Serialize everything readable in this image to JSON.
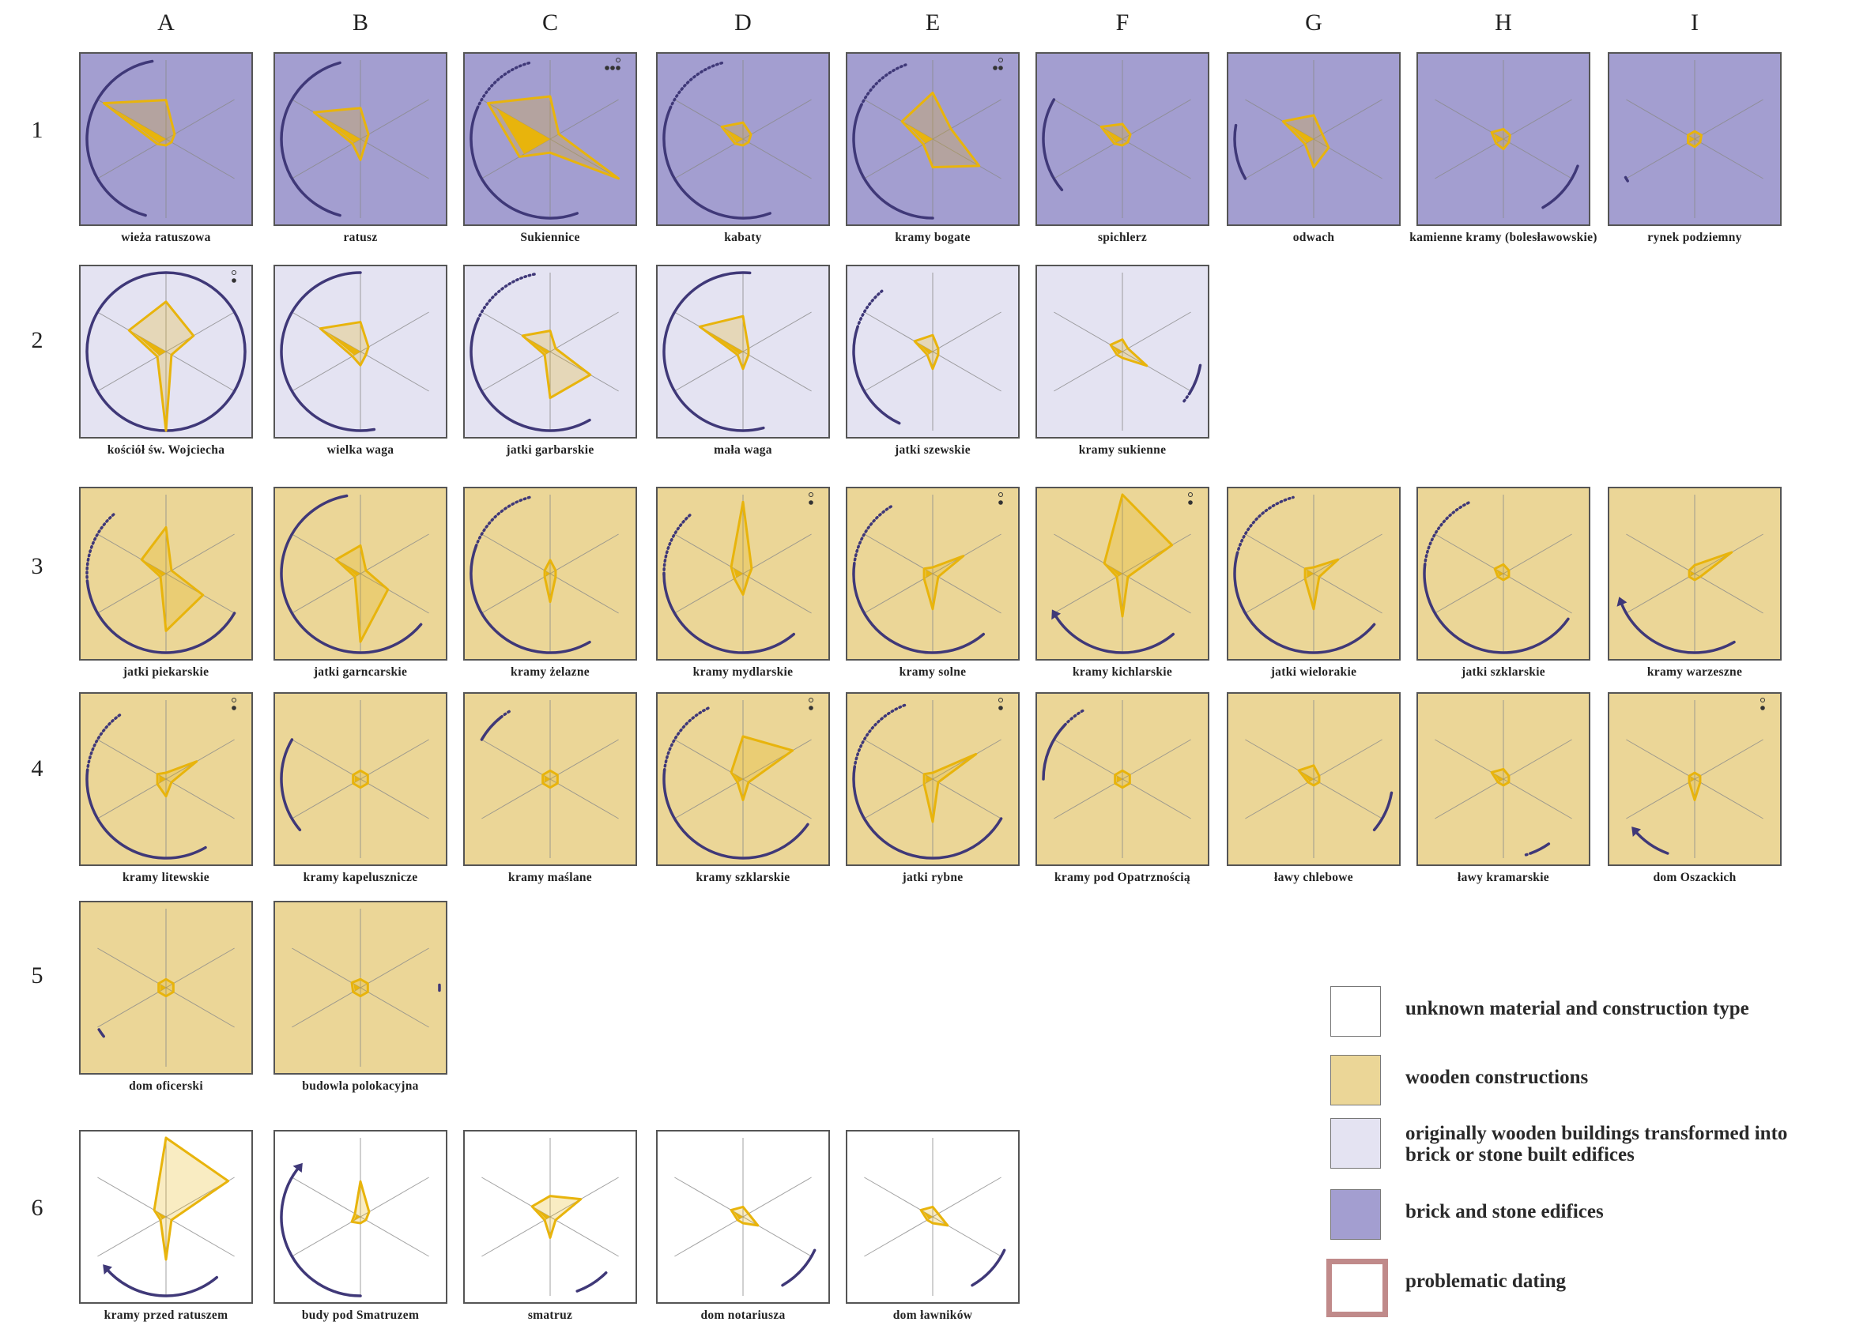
{
  "colors": {
    "unknown": "#ffffff",
    "wooden": "#ebd697",
    "transformed": "#e4e3f2",
    "brick": "#a39ed0",
    "frame": "#555555",
    "arc": "#3f3878",
    "glyph": "#e8b40c",
    "problematic": "#c08a8a"
  },
  "columns": [
    "A",
    "B",
    "C",
    "D",
    "E",
    "F",
    "G",
    "H",
    "I"
  ],
  "rows": [
    "1",
    "2",
    "3",
    "4",
    "5",
    "6"
  ],
  "cells": [
    {
      "row": 0,
      "col": 0,
      "label": "wieża ratuszowa",
      "material": "brick",
      "shape": [
        0.45,
        0.9,
        0.05,
        0.0,
        0.0,
        0.05
      ],
      "arc": [
        195,
        350,
        "solid"
      ],
      "dots": 0
    },
    {
      "row": 0,
      "col": 1,
      "label": "ratusz",
      "material": "brick",
      "shape": [
        0.34,
        0.65,
        0.04,
        0.2,
        0.0,
        0.04
      ],
      "arc": [
        195,
        345,
        "solid"
      ],
      "dots": 0
    },
    {
      "row": 0,
      "col": 2,
      "label": "Sukiennice",
      "material": "brick",
      "shape": [
        0.5,
        0.9,
        0.4,
        0.1,
        1.0,
        0.05
      ],
      "arc": [
        160,
        345,
        "dotted"
      ],
      "dots": 3
    },
    {
      "row": 0,
      "col": 3,
      "label": "kabaty",
      "material": "brick",
      "shape": [
        0.14,
        0.25,
        0.04,
        0.0,
        0.0,
        0.04
      ],
      "arc": [
        160,
        345,
        "dotted"
      ],
      "dots": 0
    },
    {
      "row": 0,
      "col": 4,
      "label": "kramy bogate",
      "material": "brick",
      "shape": [
        0.55,
        0.4,
        0.06,
        0.3,
        0.65,
        0.2
      ],
      "arc": [
        180,
        340,
        "dotted"
      ],
      "dots": 2
    },
    {
      "row": 0,
      "col": 5,
      "label": "spichlerz",
      "material": "brick",
      "shape": [
        0.12,
        0.25,
        0.04,
        0.0,
        0.0,
        0.04
      ],
      "arc": [
        230,
        300,
        "solid"
      ],
      "dots": 0
    },
    {
      "row": 0,
      "col": 6,
      "label": "odwach",
      "material": "brick",
      "shape": [
        0.24,
        0.4,
        0.05,
        0.3,
        0.15,
        0.05
      ],
      "arc": [
        240,
        280,
        "solid"
      ],
      "dots": 0
    },
    {
      "row": 0,
      "col": 7,
      "label": "kamienne kramy (bolesławowskie)",
      "material": "brick",
      "shape": [
        0.05,
        0.1,
        0.03,
        0.05,
        0.0,
        0.02
      ],
      "arc": [
        110,
        150,
        "solid"
      ],
      "dots": 0
    },
    {
      "row": 0,
      "col": 8,
      "label": "rynek podziemny",
      "material": "brick",
      "shape": [
        0.02,
        0.02,
        0.02,
        0.02,
        0.0,
        0.02
      ],
      "arc": [
        238,
        241,
        "solid"
      ],
      "dots": 0
    },
    {
      "row": 1,
      "col": 0,
      "label": "kościół św. Wojciecha",
      "material": "transformed",
      "shape": [
        0.6,
        0.5,
        0.05,
        1.0,
        0.0,
        0.35
      ],
      "arc": [
        0,
        360,
        "solid"
      ],
      "dots": 1
    },
    {
      "row": 1,
      "col": 1,
      "label": "wielka waga",
      "material": "transformed",
      "shape": [
        0.32,
        0.55,
        0.04,
        0.1,
        0.0,
        0.04
      ],
      "arc": [
        170,
        360,
        "solid"
      ],
      "dots": 0
    },
    {
      "row": 1,
      "col": 2,
      "label": "jatki garbarskie",
      "material": "transformed",
      "shape": [
        0.2,
        0.35,
        0.0,
        0.55,
        0.55,
        0.0
      ],
      "arc": [
        150,
        350,
        "dotted"
      ],
      "dots": 0
    },
    {
      "row": 1,
      "col": 3,
      "label": "mała waga",
      "material": "transformed",
      "shape": [
        0.4,
        0.6,
        0.0,
        0.15,
        0.0,
        0.0
      ],
      "arc": [
        165,
        365,
        "solid"
      ],
      "dots": 0
    },
    {
      "row": 1,
      "col": 4,
      "label": "jatki szewskie",
      "material": "transformed",
      "shape": [
        0.14,
        0.2,
        0.0,
        0.15,
        0.0,
        0.0
      ],
      "arc": [
        205,
        320,
        "dotted"
      ],
      "dots": 0
    },
    {
      "row": 1,
      "col": 5,
      "label": "kramy sukienne",
      "material": "transformed",
      "shape": [
        0.08,
        0.1,
        0.0,
        0.0,
        0.3,
        0.0
      ],
      "arc": [
        100,
        130,
        "dotted"
      ],
      "dots": 0
    },
    {
      "row": 2,
      "col": 0,
      "label": "jatki piekarskie",
      "material": "wooden",
      "shape": [
        0.55,
        0.3,
        0.0,
        0.7,
        0.5,
        0.0
      ],
      "arc": [
        120,
        320,
        "dotted"
      ],
      "dots": 0
    },
    {
      "row": 2,
      "col": 1,
      "label": "jatki garncarskie",
      "material": "wooden",
      "shape": [
        0.3,
        0.3,
        0.0,
        0.85,
        0.35,
        0.0
      ],
      "arc": [
        130,
        350,
        "solid"
      ],
      "dots": 0
    },
    {
      "row": 2,
      "col": 2,
      "label": "kramy żelazne",
      "material": "wooden",
      "shape": [
        0.1,
        0.0,
        0.0,
        0.3,
        0.0,
        0.0
      ],
      "arc": [
        150,
        345,
        "dotted"
      ],
      "dots": 0
    },
    {
      "row": 2,
      "col": 3,
      "label": "kramy mydlarskie",
      "material": "wooden",
      "shape": [
        0.9,
        0.1,
        0.05,
        0.2,
        0.0,
        0.05
      ],
      "arc": [
        140,
        320,
        "dotted"
      ],
      "dots": 1
    },
    {
      "row": 2,
      "col": 4,
      "label": "kramy solne",
      "material": "wooden",
      "shape": [
        0.0,
        0.05,
        0.05,
        0.4,
        0.0,
        0.4
      ],
      "arc": [
        140,
        330,
        "dotted"
      ],
      "dots": 1
    },
    {
      "row": 2,
      "col": 5,
      "label": "kramy kichlarskie",
      "material": "wooden",
      "shape": [
        1.0,
        0.2,
        0.0,
        0.5,
        0.0,
        0.7
      ],
      "arc": [
        140,
        240,
        "arrow"
      ],
      "dots": 1
    },
    {
      "row": 2,
      "col": 6,
      "label": "jatki wielorakie",
      "material": "wooden",
      "shape": [
        0.0,
        0.05,
        0.05,
        0.4,
        0.0,
        0.3
      ],
      "arc": [
        130,
        345,
        "dotted"
      ],
      "dots": 0
    },
    {
      "row": 2,
      "col": 7,
      "label": "jatki szklarskie",
      "material": "wooden",
      "shape": [
        0.04,
        0.05,
        0.0,
        0.0,
        0.0,
        0.0
      ],
      "arc": [
        125,
        335,
        "dotted"
      ],
      "dots": 0
    },
    {
      "row": 2,
      "col": 8,
      "label": "kramy warzeszne",
      "material": "wooden",
      "shape": [
        0.03,
        0.0,
        0.0,
        0.0,
        0.0,
        0.5
      ],
      "arc": [
        150,
        250,
        "arrow"
      ],
      "dots": 0
    },
    {
      "row": 3,
      "col": 0,
      "label": "kramy litewskie",
      "material": "wooden",
      "shape": [
        0.0,
        0.05,
        0.05,
        0.15,
        0.0,
        0.4
      ],
      "arc": [
        150,
        325,
        "dotted"
      ],
      "dots": 1
    },
    {
      "row": 3,
      "col": 1,
      "label": "kramy kapelusznicze",
      "material": "wooden",
      "shape": [
        0.03,
        0.03,
        0.03,
        0.03,
        0.03,
        0.03
      ],
      "arc": [
        230,
        300,
        "solid"
      ],
      "dots": 0
    },
    {
      "row": 3,
      "col": 2,
      "label": "kramy maślane",
      "material": "wooden",
      "shape": [
        0.03,
        0.03,
        0.03,
        0.03,
        0.03,
        0.03
      ],
      "arc": [
        300,
        330,
        "dotted"
      ],
      "dots": 0
    },
    {
      "row": 3,
      "col": 3,
      "label": "kramy szklarskie",
      "material": "wooden",
      "shape": [
        0.5,
        0.1,
        0.0,
        0.2,
        0.0,
        0.7
      ],
      "arc": [
        125,
        335,
        "dotted"
      ],
      "dots": 1
    },
    {
      "row": 3,
      "col": 4,
      "label": "jatki rybne",
      "material": "wooden",
      "shape": [
        0.0,
        0.05,
        0.05,
        0.5,
        0.0,
        0.6
      ],
      "arc": [
        120,
        340,
        "dotted"
      ],
      "dots": 1
    },
    {
      "row": 3,
      "col": 5,
      "label": "kramy pod Opatrznością",
      "material": "wooden",
      "shape": [
        0.03,
        0.03,
        0.03,
        0.03,
        0.03,
        0.03
      ],
      "arc": [
        270,
        330,
        "dotted"
      ],
      "dots": 0
    },
    {
      "row": 3,
      "col": 6,
      "label": "ławy chlebowe",
      "material": "wooden",
      "shape": [
        0.1,
        0.15,
        0.0,
        0.0,
        0.0,
        0.0
      ],
      "arc": [
        100,
        130,
        "solid"
      ],
      "dots": 0
    },
    {
      "row": 3,
      "col": 7,
      "label": "ławy kramarskie",
      "material": "wooden",
      "shape": [
        0.05,
        0.1,
        0.0,
        0.0,
        0.0,
        0.0
      ],
      "arc": [
        145,
        165,
        "dotted"
      ],
      "dots": 0
    },
    {
      "row": 3,
      "col": 8,
      "label": "dom Oszackich",
      "material": "wooden",
      "shape": [
        0.0,
        0.0,
        0.0,
        0.2,
        0.0,
        0.0
      ],
      "arc": [
        200,
        230,
        "arrow"
      ],
      "dots": 1
    },
    {
      "row": 4,
      "col": 0,
      "label": "dom oficerski",
      "material": "wooden",
      "shape": [
        0.03,
        0.03,
        0.03,
        0.03,
        0.03,
        0.03
      ],
      "arc": [
        232,
        238,
        "solid"
      ],
      "dots": 0
    },
    {
      "row": 4,
      "col": 1,
      "label": "budowla polokacyjna",
      "material": "wooden",
      "shape": [
        0.03,
        0.05,
        0.03,
        0.03,
        0.03,
        0.03
      ],
      "arc": [
        88,
        92,
        "solid"
      ],
      "dots": 0
    },
    {
      "row": 5,
      "col": 0,
      "label": "kramy przed ratuszem",
      "material": "unknown",
      "shape": [
        1.0,
        0.1,
        0.0,
        0.5,
        0.0,
        0.9
      ],
      "arc": [
        140,
        230,
        "arrow"
      ],
      "dots": 0
    },
    {
      "row": 5,
      "col": 1,
      "label": "budy pod Smatruzem",
      "material": "unknown",
      "shape": [
        0.4,
        0.0,
        0.05,
        0.0,
        0.0,
        0.05
      ],
      "arc": [
        180,
        310,
        "arrow"
      ],
      "dots": 0
    },
    {
      "row": 5,
      "col": 2,
      "label": "smatruz",
      "material": "unknown",
      "shape": [
        0.2,
        0.2,
        0.0,
        0.2,
        0.0,
        0.4
      ],
      "arc": [
        135,
        160,
        "solid"
      ],
      "dots": 0
    },
    {
      "row": 5,
      "col": 3,
      "label": "dom notariusza",
      "material": "unknown",
      "shape": [
        0.05,
        0.1,
        0.0,
        0.0,
        0.15,
        0.0
      ],
      "arc": [
        115,
        150,
        "solid"
      ],
      "dots": 0
    },
    {
      "row": 5,
      "col": 4,
      "label": "dom ławników",
      "material": "unknown",
      "shape": [
        0.05,
        0.1,
        0.0,
        0.0,
        0.15,
        0.0
      ],
      "arc": [
        115,
        150,
        "solid"
      ],
      "dots": 0
    }
  ],
  "legend": [
    {
      "key": "unknown",
      "label": "unknown material and construction type"
    },
    {
      "key": "wooden",
      "label": "wooden constructions"
    },
    {
      "key": "transformed",
      "label": "originally wooden buildings transformed into brick or stone built edifices"
    },
    {
      "key": "brick",
      "label": "brick and stone edifices"
    },
    {
      "key": "problematic",
      "label": "problematic dating"
    }
  ]
}
